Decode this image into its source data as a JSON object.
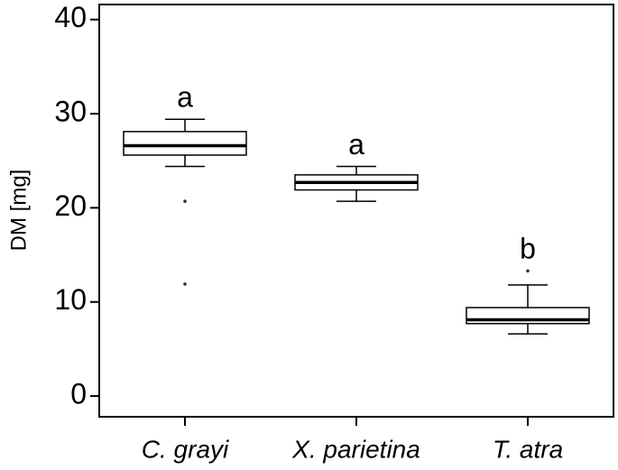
{
  "chart_data": {
    "type": "box",
    "y_label": "DM [mg]",
    "categories": [
      "C. grayi",
      "X. parietina",
      "T. atra"
    ],
    "boxes": [
      {
        "whislo": 24.4,
        "q1": 25.6,
        "med": 26.6,
        "q3": 28.1,
        "whishi": 29.4,
        "fliers": [
          20.7,
          11.9
        ]
      },
      {
        "whislo": 20.7,
        "q1": 21.9,
        "med": 22.7,
        "q3": 23.5,
        "whishi": 24.4,
        "fliers": []
      },
      {
        "whislo": 6.6,
        "q1": 7.7,
        "med": 8.1,
        "q3": 9.4,
        "whishi": 11.8,
        "fliers": [
          13.3
        ]
      }
    ],
    "annotations": [
      "a",
      "a",
      "b"
    ],
    "ylim": [
      -2.2,
      41.6
    ],
    "yticks": [
      0,
      10,
      20,
      30,
      40
    ]
  }
}
